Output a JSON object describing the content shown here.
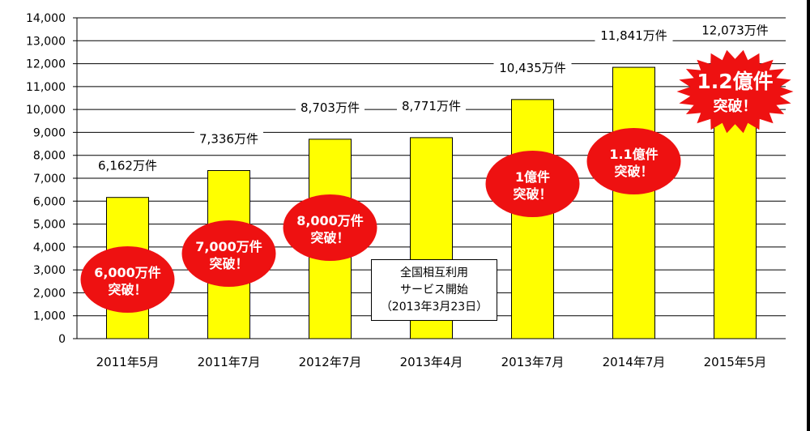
{
  "chart_data": {
    "type": "bar",
    "categories": [
      "2011年5月",
      "2011年7月",
      "2012年7月",
      "2013年4月",
      "2013年7月",
      "2014年7月",
      "2015年5月"
    ],
    "values": [
      6162,
      7336,
      8703,
      8771,
      10435,
      11841,
      12073
    ],
    "value_labels": [
      "6,162万件",
      "7,336万件",
      "8,703万件",
      "8,771万件",
      "10,435万件",
      "11,841万件",
      "12,073万件"
    ],
    "ylim": [
      0,
      14000
    ],
    "yticks": [
      "0",
      "1,000",
      "2,000",
      "3,000",
      "4,000",
      "5,000",
      "6,000",
      "7,000",
      "8,000",
      "9,000",
      "10,000",
      "11,000",
      "12,000",
      "13,000",
      "14,000"
    ],
    "grid": true,
    "bar_color": "#ffff00",
    "badges": [
      {
        "category_index": 0,
        "line1": "6,000万件",
        "line2": "突破！"
      },
      {
        "category_index": 1,
        "line1": "7,000万件",
        "line2": "突破！"
      },
      {
        "category_index": 2,
        "line1": "8,000万件",
        "line2": "突破！"
      },
      {
        "category_index": 4,
        "line1": "1億件",
        "line2": "突破！"
      },
      {
        "category_index": 5,
        "line1": "1.1億件",
        "line2": "突破！"
      },
      {
        "category_index": 6,
        "line1": "1.2億件",
        "line2": "突破！",
        "style": "burst"
      }
    ],
    "badge_color": "#ee1111",
    "annotation": {
      "line1": "全国相互利用",
      "line2": "サービス開始",
      "line3": "（2013年3月23日）"
    }
  }
}
